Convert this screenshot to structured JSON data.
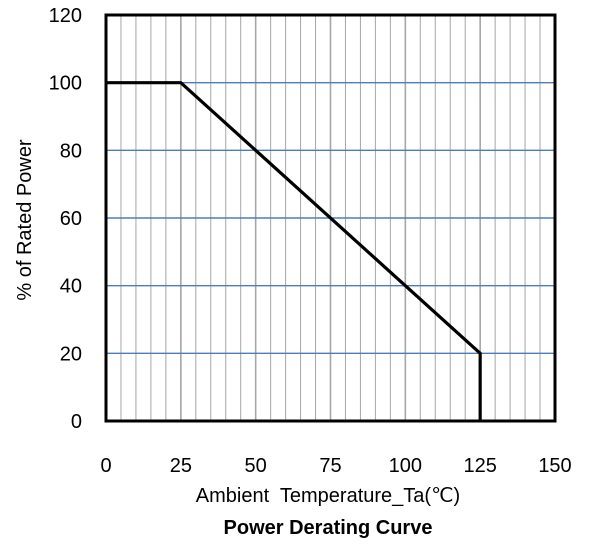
{
  "chart_data": {
    "type": "line",
    "title": "Power Derating Curve",
    "xlabel": "Ambient  Temperature_Ta(℃)",
    "ylabel": "% of Rated Power",
    "xlim": [
      0,
      150
    ],
    "ylim": [
      0,
      120
    ],
    "xticks": [
      0,
      25,
      50,
      75,
      100,
      125,
      150
    ],
    "yticks": [
      0,
      20,
      40,
      60,
      80,
      100,
      120
    ],
    "x_minor_step": 5,
    "grid": true,
    "legend": "none",
    "series": [
      {
        "x": [
          0,
          25,
          125,
          125
        ],
        "y": [
          100,
          100,
          20,
          0
        ]
      }
    ],
    "colors": {
      "line": "#000000",
      "major_grid": "#4a7ebb",
      "minor_grid": "#a6a6a6",
      "frame": "#000000"
    }
  }
}
